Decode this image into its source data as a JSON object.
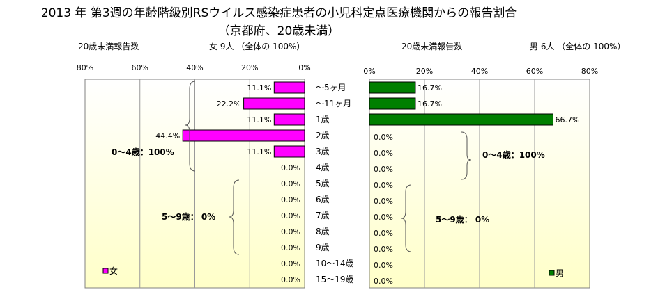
{
  "title": "2013 年 第3週の年齢階級別RSウイルス感染症患者の小児科定点医療機関からの報告割合",
  "subtitle": "（京都府、20歳未満）",
  "left_header": {
    "label": "20歳未満報告数",
    "count": "女 9人 （全体の 100%）"
  },
  "right_header": {
    "label": "20歳未満報告数",
    "count": "男 6人 （全体の 100%）"
  },
  "colors": {
    "female": "#ff00ff",
    "male": "#007f00",
    "plot_bg_top": "#ffffff",
    "plot_bg_bottom": "#ffffc8"
  },
  "chart_data": [
    {
      "type": "bar",
      "orientation": "horizontal-reversed",
      "series": [
        {
          "name": "女",
          "values": [
            11.1,
            22.2,
            11.1,
            44.4,
            11.1,
            0,
            0,
            0,
            0,
            0,
            0,
            0,
            0
          ]
        }
      ],
      "value_labels": [
        "11.1%",
        "22.2%",
        "11.1%",
        "44.4%",
        "11.1%",
        "0.0%",
        "0.0%",
        "0.0%",
        "0.0%",
        "0.0%",
        "0.0%",
        "0.0%",
        "0.0%"
      ],
      "xlim": [
        0,
        80
      ],
      "xticks": [
        "0%",
        "20%",
        "40%",
        "60%",
        "80%"
      ],
      "grid": true,
      "legend": "bottom-left",
      "annotations": [
        "0〜4歳：100%",
        "5〜9歳： 0%"
      ]
    },
    {
      "type": "bar",
      "orientation": "horizontal",
      "series": [
        {
          "name": "男",
          "values": [
            16.7,
            16.7,
            66.7,
            0,
            0,
            0,
            0,
            0,
            0,
            0,
            0,
            0,
            0
          ]
        }
      ],
      "value_labels": [
        "16.7%",
        "16.7%",
        "66.7%",
        "0.0%",
        "0.0%",
        "0.0%",
        "0.0%",
        "0.0%",
        "0.0%",
        "0.0%",
        "0.0%",
        "0.0%",
        "0.0%"
      ],
      "xlim": [
        0,
        80
      ],
      "xticks": [
        "0%",
        "20%",
        "40%",
        "60%",
        "80%"
      ],
      "grid": true,
      "legend": "bottom-right",
      "annotations": [
        "0〜4歳：100%",
        "5〜9歳： 0%"
      ]
    }
  ],
  "categories": [
    "〜5ヶ月",
    "〜11ヶ月",
    "1歳",
    "2歳",
    "3歳",
    "4歳",
    "5歳",
    "6歳",
    "7歳",
    "8歳",
    "9歳",
    "10〜14歳",
    "15〜19歳"
  ]
}
